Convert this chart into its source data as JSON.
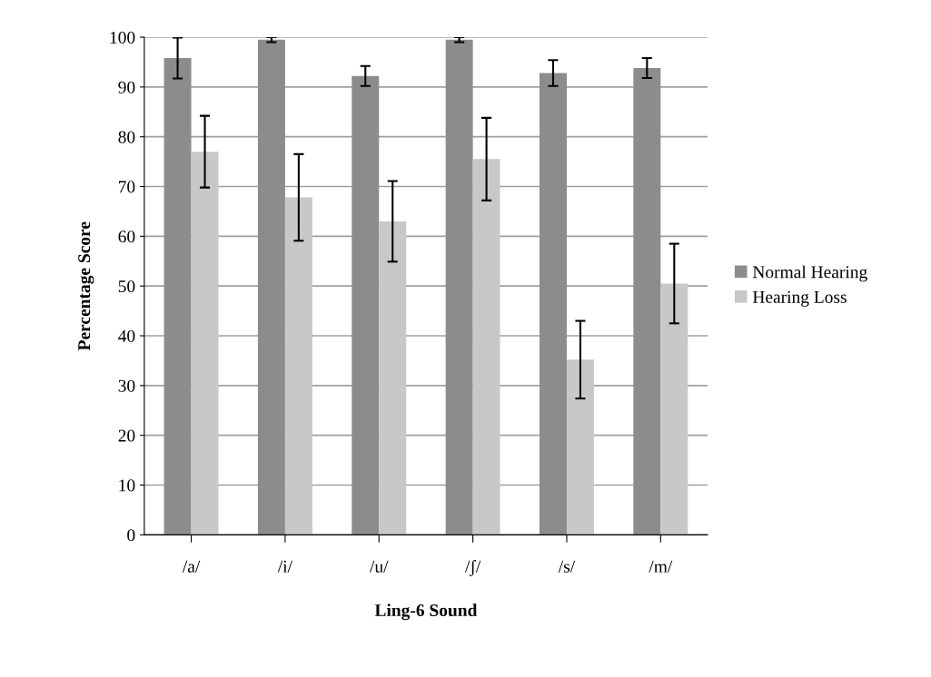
{
  "chart_data": {
    "type": "bar",
    "xlabel": "Ling-6 Sound",
    "ylabel": "Percentage Score",
    "categories": [
      "/a/",
      "/i/",
      "/u/",
      "/ʃ/",
      "/s/",
      "/m/"
    ],
    "series": [
      {
        "name": "Normal Hearing",
        "color": "#8c8c8c",
        "values": [
          95.8,
          99.5,
          92.2,
          99.5,
          92.8,
          93.8
        ],
        "errors": [
          4.1,
          0.5,
          2,
          0.5,
          2.6,
          2
        ]
      },
      {
        "name": "Hearing Loss",
        "color": "#c8c8c8",
        "values": [
          77,
          67.8,
          63,
          75.5,
          35.2,
          50.5
        ],
        "errors": [
          7.2,
          8.7,
          8.1,
          8.3,
          7.8,
          8
        ]
      }
    ],
    "ylim": [
      0,
      100
    ],
    "yticks": [
      0,
      10,
      20,
      30,
      40,
      50,
      60,
      70,
      80,
      90,
      100
    ],
    "grid": "y",
    "legend": "right"
  }
}
